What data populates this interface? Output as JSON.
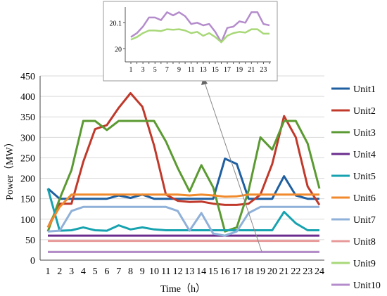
{
  "chart_data": [
    {
      "type": "line",
      "xlabel": "Time（h）",
      "ylabel": "Power（MW）",
      "x": [
        1,
        2,
        3,
        4,
        5,
        6,
        7,
        8,
        9,
        10,
        11,
        12,
        13,
        14,
        15,
        16,
        17,
        18,
        19,
        20,
        21,
        22,
        23,
        24
      ],
      "ylim": [
        0,
        450
      ],
      "yticks": [
        0,
        50,
        100,
        150,
        200,
        250,
        300,
        350,
        400,
        450
      ],
      "legend_position": "right",
      "series": [
        {
          "name": "Unit1",
          "color": "#1f5fa0",
          "values": [
            175,
            150,
            150,
            150,
            150,
            150,
            158,
            152,
            160,
            150,
            150,
            150,
            150,
            150,
            150,
            248,
            235,
            150,
            150,
            150,
            205,
            158,
            150,
            150
          ]
        },
        {
          "name": "Unit2",
          "color": "#c0392b",
          "values": [
            80,
            138,
            138,
            240,
            320,
            330,
            372,
            408,
            375,
            280,
            160,
            145,
            142,
            143,
            138,
            135,
            135,
            138,
            160,
            235,
            352,
            300,
            180,
            135
          ]
        },
        {
          "name": "Unit3",
          "color": "#5b9a32",
          "values": [
            70,
            150,
            220,
            340,
            340,
            318,
            340,
            340,
            340,
            340,
            290,
            225,
            168,
            232,
            178,
            70,
            80,
            170,
            300,
            270,
            340,
            340,
            285,
            175
          ]
        },
        {
          "name": "Unit4",
          "color": "#6a2c8e",
          "values": [
            60,
            60,
            60,
            60,
            60,
            60,
            60,
            60,
            60,
            60,
            60,
            60,
            60,
            60,
            60,
            60,
            60,
            60,
            60,
            60,
            60,
            60,
            60,
            60
          ]
        },
        {
          "name": "Unit5",
          "color": "#17a2b0",
          "values": [
            175,
            72,
            73,
            80,
            73,
            72,
            85,
            75,
            80,
            75,
            73,
            73,
            73,
            73,
            73,
            73,
            73,
            73,
            73,
            73,
            118,
            90,
            73,
            73
          ]
        },
        {
          "name": "Unit6",
          "color": "#f08a2c",
          "values": [
            80,
            130,
            160,
            160,
            160,
            160,
            160,
            160,
            160,
            160,
            160,
            160,
            158,
            160,
            158,
            155,
            156,
            160,
            160,
            160,
            160,
            160,
            160,
            160
          ]
        },
        {
          "name": "Unit7",
          "color": "#8fb0d8",
          "values": [
            70,
            72,
            120,
            130,
            130,
            130,
            130,
            130,
            130,
            130,
            130,
            120,
            72,
            115,
            65,
            60,
            70,
            115,
            130,
            130,
            130,
            130,
            130,
            130
          ]
        },
        {
          "name": "Unit8",
          "color": "#e89a9a",
          "values": [
            47,
            47,
            47,
            47,
            47,
            47,
            47,
            47,
            47,
            47,
            47,
            47,
            47,
            47,
            47,
            47,
            47,
            47,
            47,
            47,
            47,
            47,
            47,
            47
          ]
        },
        {
          "name": "Unit9",
          "color": "#a8d878",
          "values": [
            20,
            20,
            20,
            20,
            20,
            20,
            20,
            20,
            20,
            20,
            20,
            20,
            20,
            20,
            20,
            20,
            20,
            20,
            20,
            20,
            20,
            20,
            20,
            20
          ]
        },
        {
          "name": "Unit10",
          "color": "#b48ccc",
          "values": [
            20,
            20,
            20,
            20,
            20,
            20,
            20,
            20,
            20,
            20,
            20,
            20,
            20,
            20,
            20,
            20,
            20,
            20,
            20,
            20,
            20,
            20,
            20,
            20
          ]
        }
      ]
    },
    {
      "type": "line",
      "role": "inset-zoom",
      "x": [
        1,
        2,
        3,
        4,
        5,
        6,
        7,
        8,
        9,
        10,
        11,
        12,
        13,
        14,
        15,
        16,
        17,
        18,
        19,
        20,
        21,
        22,
        23,
        24
      ],
      "xticks": [
        1,
        3,
        5,
        7,
        9,
        11,
        13,
        15,
        17,
        19,
        21,
        23
      ],
      "ylim": [
        19.95,
        20.16
      ],
      "yticks": [
        20,
        20.1
      ],
      "ytick_labels": [
        "20",
        "20.1"
      ],
      "series": [
        {
          "name": "Unit10",
          "color": "#b48ccc",
          "values": [
            20.045,
            20.06,
            20.085,
            20.12,
            20.12,
            20.11,
            20.14,
            20.128,
            20.14,
            20.125,
            20.095,
            20.1,
            20.09,
            20.095,
            20.065,
            20.025,
            20.08,
            20.085,
            20.105,
            20.1,
            20.14,
            20.14,
            20.095,
            20.09
          ]
        },
        {
          "name": "Unit9",
          "color": "#a8d878",
          "values": [
            20.035,
            20.045,
            20.06,
            20.07,
            20.07,
            20.068,
            20.075,
            20.073,
            20.075,
            20.07,
            20.06,
            20.065,
            20.05,
            20.06,
            20.045,
            20.025,
            20.05,
            20.06,
            20.065,
            20.062,
            20.075,
            20.075,
            20.058,
            20.058
          ]
        }
      ]
    }
  ]
}
